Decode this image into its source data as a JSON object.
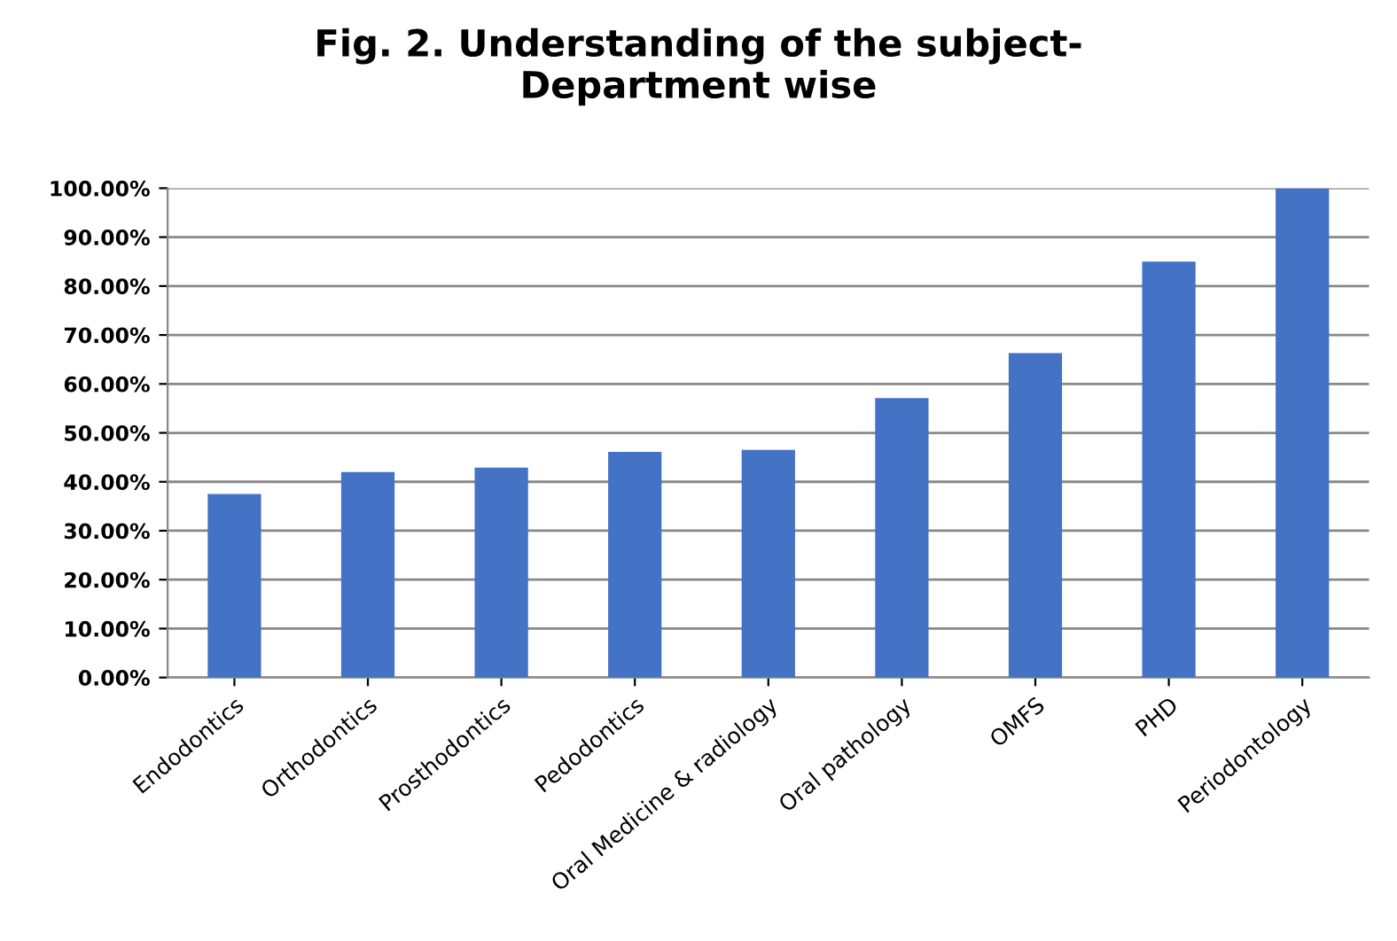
{
  "chart_data": {
    "type": "bar",
    "title": "Fig. 2. Understanding of the subject-\nDepartment wise",
    "categories": [
      "Endodontics",
      "Orthodontics",
      "Prosthodontics",
      "Pedodontics",
      "Oral Medicine & radiology",
      "Oral pathology",
      "OMFS",
      "PHD",
      "Periodontology"
    ],
    "values": [
      37.5,
      42,
      42.9,
      46.1,
      46.5,
      57.1,
      66.3,
      85,
      100
    ],
    "color": "#4472c4",
    "ylim": [
      0,
      100
    ],
    "yticks": [
      {
        "value": 0,
        "label": "0.00%"
      },
      {
        "value": 10,
        "label": "10.00%"
      },
      {
        "value": 20,
        "label": "20.00%"
      },
      {
        "value": 30,
        "label": "30.00%"
      },
      {
        "value": 40,
        "label": "40.00%"
      },
      {
        "value": 50,
        "label": "50.00%"
      },
      {
        "value": 60,
        "label": "60.00%"
      },
      {
        "value": 70,
        "label": "70.00%"
      },
      {
        "value": 80,
        "label": "80.00%"
      },
      {
        "value": 90,
        "label": "90.00%"
      },
      {
        "value": 100,
        "label": "100.00%"
      }
    ],
    "grid": "y"
  }
}
